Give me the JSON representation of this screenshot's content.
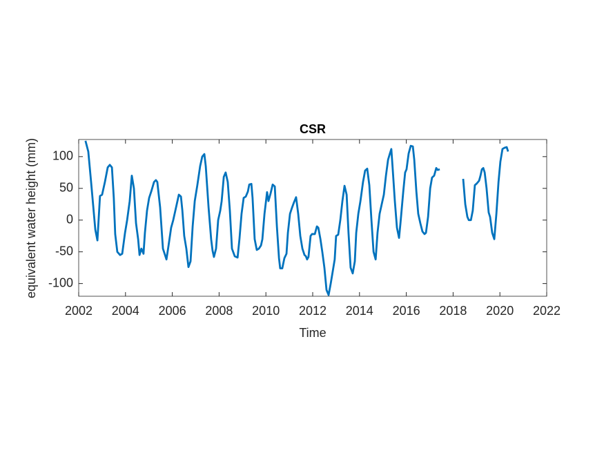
{
  "chart_data": {
    "type": "line",
    "title": "CSR",
    "xlabel": "Time",
    "ylabel": "equivalent water height (mm)",
    "xlim": [
      2002,
      2022
    ],
    "xticks": [
      2002,
      2004,
      2006,
      2008,
      2010,
      2012,
      2014,
      2016,
      2018,
      2020,
      2022
    ],
    "ylim": [
      -120,
      127
    ],
    "yticks": [
      -100,
      -50,
      0,
      50,
      100
    ],
    "grid": false,
    "x": [
      2002.29,
      2002.41,
      2002.53,
      2002.71,
      2002.8,
      2002.91,
      2003.0,
      2003.12,
      2003.24,
      2003.33,
      2003.42,
      2003.5,
      2003.56,
      2003.65,
      2003.77,
      2003.86,
      2003.98,
      2004.07,
      2004.18,
      2004.27,
      2004.36,
      2004.45,
      2004.54,
      2004.6,
      2004.68,
      2004.77,
      2004.83,
      2004.92,
      2005.01,
      2005.1,
      2005.22,
      2005.3,
      2005.36,
      2005.48,
      2005.6,
      2005.69,
      2005.75,
      2005.84,
      2005.95,
      2006.04,
      2006.13,
      2006.28,
      2006.37,
      2006.43,
      2006.51,
      2006.6,
      2006.69,
      2006.78,
      2006.87,
      2006.96,
      2007.07,
      2007.19,
      2007.28,
      2007.37,
      2007.43,
      2007.55,
      2007.66,
      2007.72,
      2007.78,
      2007.87,
      2007.96,
      2008.05,
      2008.11,
      2008.2,
      2008.28,
      2008.37,
      2008.46,
      2008.55,
      2008.67,
      2008.79,
      2008.87,
      2008.96,
      2009.05,
      2009.14,
      2009.23,
      2009.29,
      2009.38,
      2009.43,
      2009.52,
      2009.61,
      2009.7,
      2009.79,
      2009.85,
      2009.94,
      2010.05,
      2010.11,
      2010.2,
      2010.29,
      2010.38,
      2010.47,
      2010.56,
      2010.61,
      2010.7,
      2010.79,
      2010.88,
      2010.94,
      2011.03,
      2011.12,
      2011.2,
      2011.29,
      2011.38,
      2011.47,
      2011.56,
      2011.65,
      2011.71,
      2011.76,
      2011.82,
      2011.91,
      2011.97,
      2012.09,
      2012.18,
      2012.24,
      2012.33,
      2012.41,
      2012.5,
      2012.59,
      2012.68,
      2012.77,
      2012.86,
      2012.94,
      2013.0,
      2013.09,
      2013.18,
      2013.27,
      2013.36,
      2013.45,
      2013.53,
      2013.62,
      2013.71,
      2013.8,
      2013.86,
      2013.95,
      2014.04,
      2014.15,
      2014.24,
      2014.33,
      2014.42,
      2014.51,
      2014.6,
      2014.69,
      2014.77,
      2014.86,
      2014.95,
      2015.04,
      2015.13,
      2015.22,
      2015.3,
      2015.36,
      2015.42,
      2015.51,
      2015.6,
      2015.69,
      2015.75,
      2015.87,
      2015.95,
      2016.01,
      2016.1,
      2016.19,
      2016.28,
      2016.34,
      2016.43,
      2016.51,
      2016.6,
      2016.69,
      2016.78,
      2016.84,
      2016.93,
      2017.02,
      2017.1,
      2017.19,
      2017.28,
      2017.34,
      2017.43,
      2017.9,
      2018.43,
      2018.52,
      2018.61,
      2018.67,
      2018.76,
      2018.84,
      2018.93,
      2019.02,
      2019.11,
      2019.17,
      2019.23,
      2019.29,
      2019.35,
      2019.43,
      2019.52,
      2019.58,
      2019.67,
      2019.76,
      2019.85,
      2019.94,
      2020.02,
      2020.11,
      2020.2,
      2020.29,
      2020.35
    ],
    "series": [
      {
        "color": "#0072bd",
        "values": [
          125,
          108,
          60,
          -15,
          -32,
          38,
          40,
          60,
          83,
          87,
          83,
          35,
          -22,
          -50,
          -55,
          -53,
          -20,
          0,
          30,
          70,
          50,
          -5,
          -30,
          -55,
          -45,
          -53,
          -20,
          15,
          35,
          45,
          60,
          63,
          60,
          20,
          -45,
          -55,
          -62,
          -40,
          -12,
          0,
          15,
          40,
          37,
          15,
          -25,
          -45,
          -74,
          -65,
          -10,
          30,
          55,
          85,
          100,
          104,
          85,
          20,
          -30,
          -48,
          -58,
          -45,
          0,
          15,
          30,
          68,
          75,
          60,
          15,
          -45,
          -57,
          -59,
          -30,
          10,
          35,
          37,
          45,
          56,
          57,
          35,
          -30,
          -47,
          -45,
          -40,
          -30,
          10,
          44,
          30,
          42,
          56,
          53,
          -10,
          -60,
          -76,
          -76,
          -60,
          -53,
          -20,
          10,
          20,
          28,
          36,
          10,
          -25,
          -45,
          -55,
          -57,
          -62,
          -58,
          -25,
          -22,
          -22,
          -10,
          -12,
          -30,
          -50,
          -75,
          -110,
          -118,
          -100,
          -80,
          -62,
          -25,
          -23,
          0,
          30,
          54,
          40,
          -20,
          -75,
          -84,
          -65,
          -20,
          10,
          30,
          60,
          78,
          81,
          55,
          0,
          -50,
          -62,
          -20,
          10,
          25,
          40,
          70,
          95,
          105,
          112,
          80,
          30,
          -12,
          -28,
          -5,
          45,
          75,
          80,
          105,
          117,
          116,
          95,
          45,
          10,
          -5,
          -18,
          -22,
          -20,
          5,
          50,
          67,
          70,
          82,
          79,
          80,
          null,
          65,
          25,
          5,
          0,
          0,
          15,
          55,
          58,
          62,
          70,
          80,
          82,
          75,
          50,
          12,
          5,
          -20,
          -30,
          10,
          60,
          92,
          112,
          114,
          115,
          108
        ]
      }
    ]
  }
}
